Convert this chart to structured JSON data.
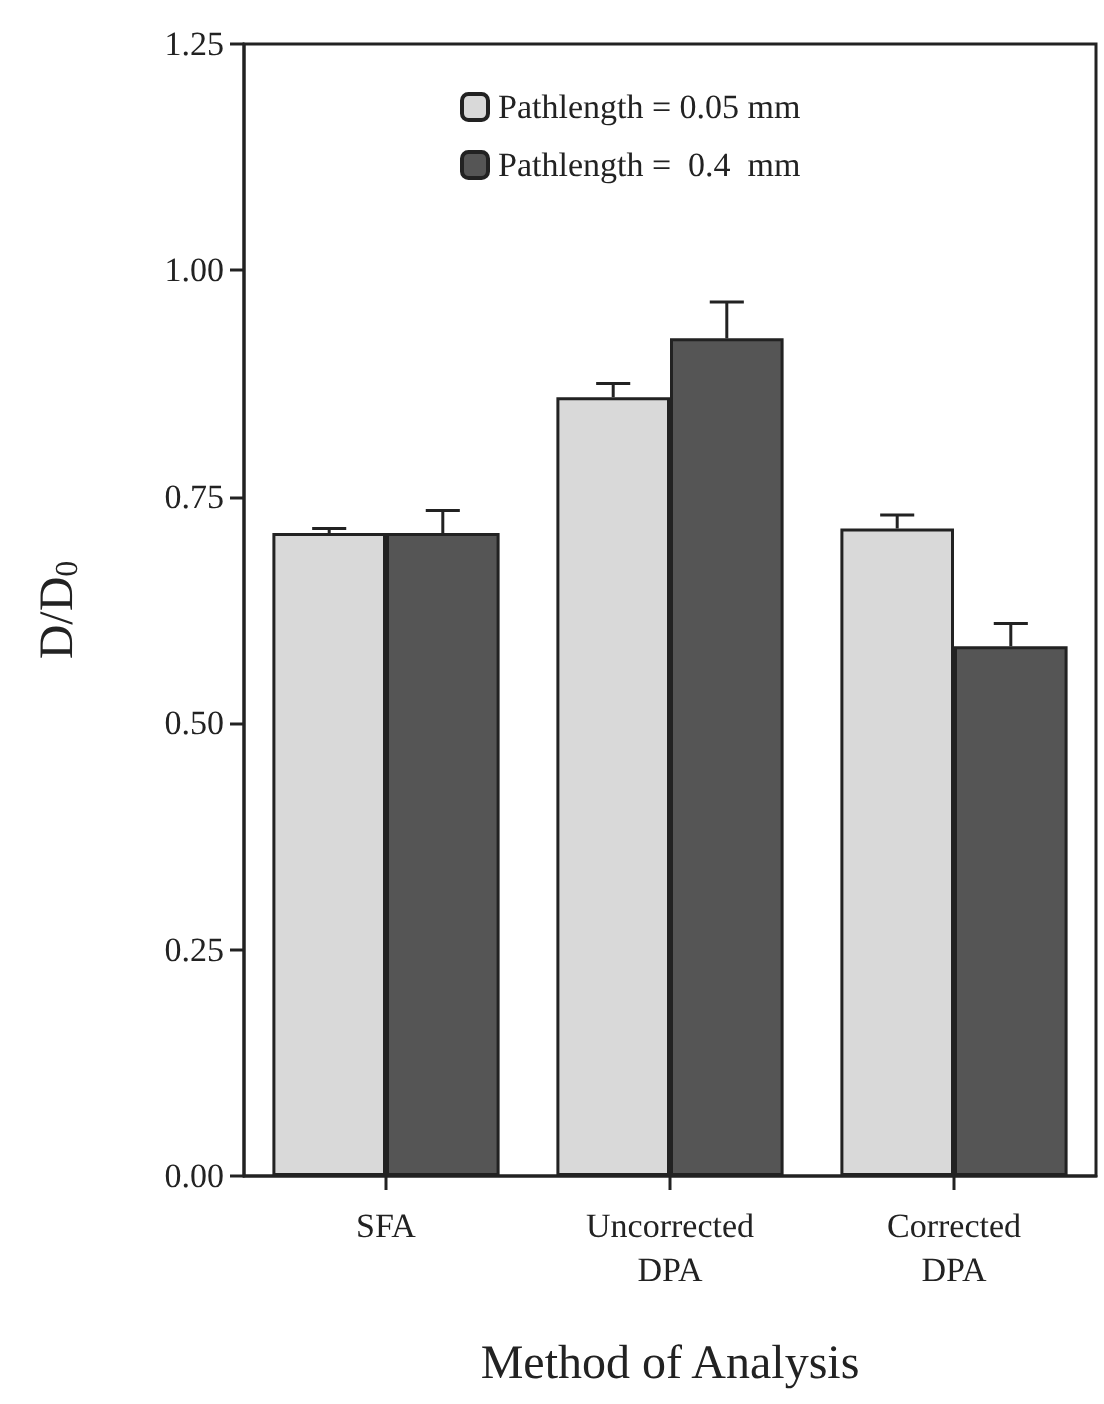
{
  "chart_data": {
    "type": "bar",
    "xlabel": "Method of Analysis",
    "ylabel": "D/D$_{0}$",
    "categories": [
      "SFA",
      "Uncorrected\nDPA",
      "Corrected\nDPA"
    ],
    "series": [
      {
        "name": "Pathlength = 0.05 mm",
        "color": "#d9d9d9",
        "values": [
          0.71,
          0.86,
          0.715
        ],
        "errors": [
          [
            0.71,
            0.715
          ],
          [
            0.86,
            0.875
          ],
          [
            0.715,
            0.73
          ]
        ]
      },
      {
        "name": "Pathlength =  0.4  mm",
        "color": "#555555",
        "values": [
          0.71,
          0.925,
          0.585
        ],
        "errors": [
          [
            0.71,
            0.735
          ],
          [
            0.925,
            0.965
          ],
          [
            0.585,
            0.61
          ]
        ]
      }
    ],
    "ylim": [
      0,
      1.25
    ],
    "yticks": [
      {
        "value": 0,
        "label": "0.00"
      },
      {
        "value": 0.25,
        "label": "0.25"
      },
      {
        "value": 0.5,
        "label": "0.50"
      },
      {
        "value": 0.75,
        "label": "0.75"
      },
      {
        "value": 1,
        "label": "1.00"
      },
      {
        "value": 1.25,
        "label": "1.25"
      }
    ],
    "grid": false,
    "legend": "top"
  }
}
